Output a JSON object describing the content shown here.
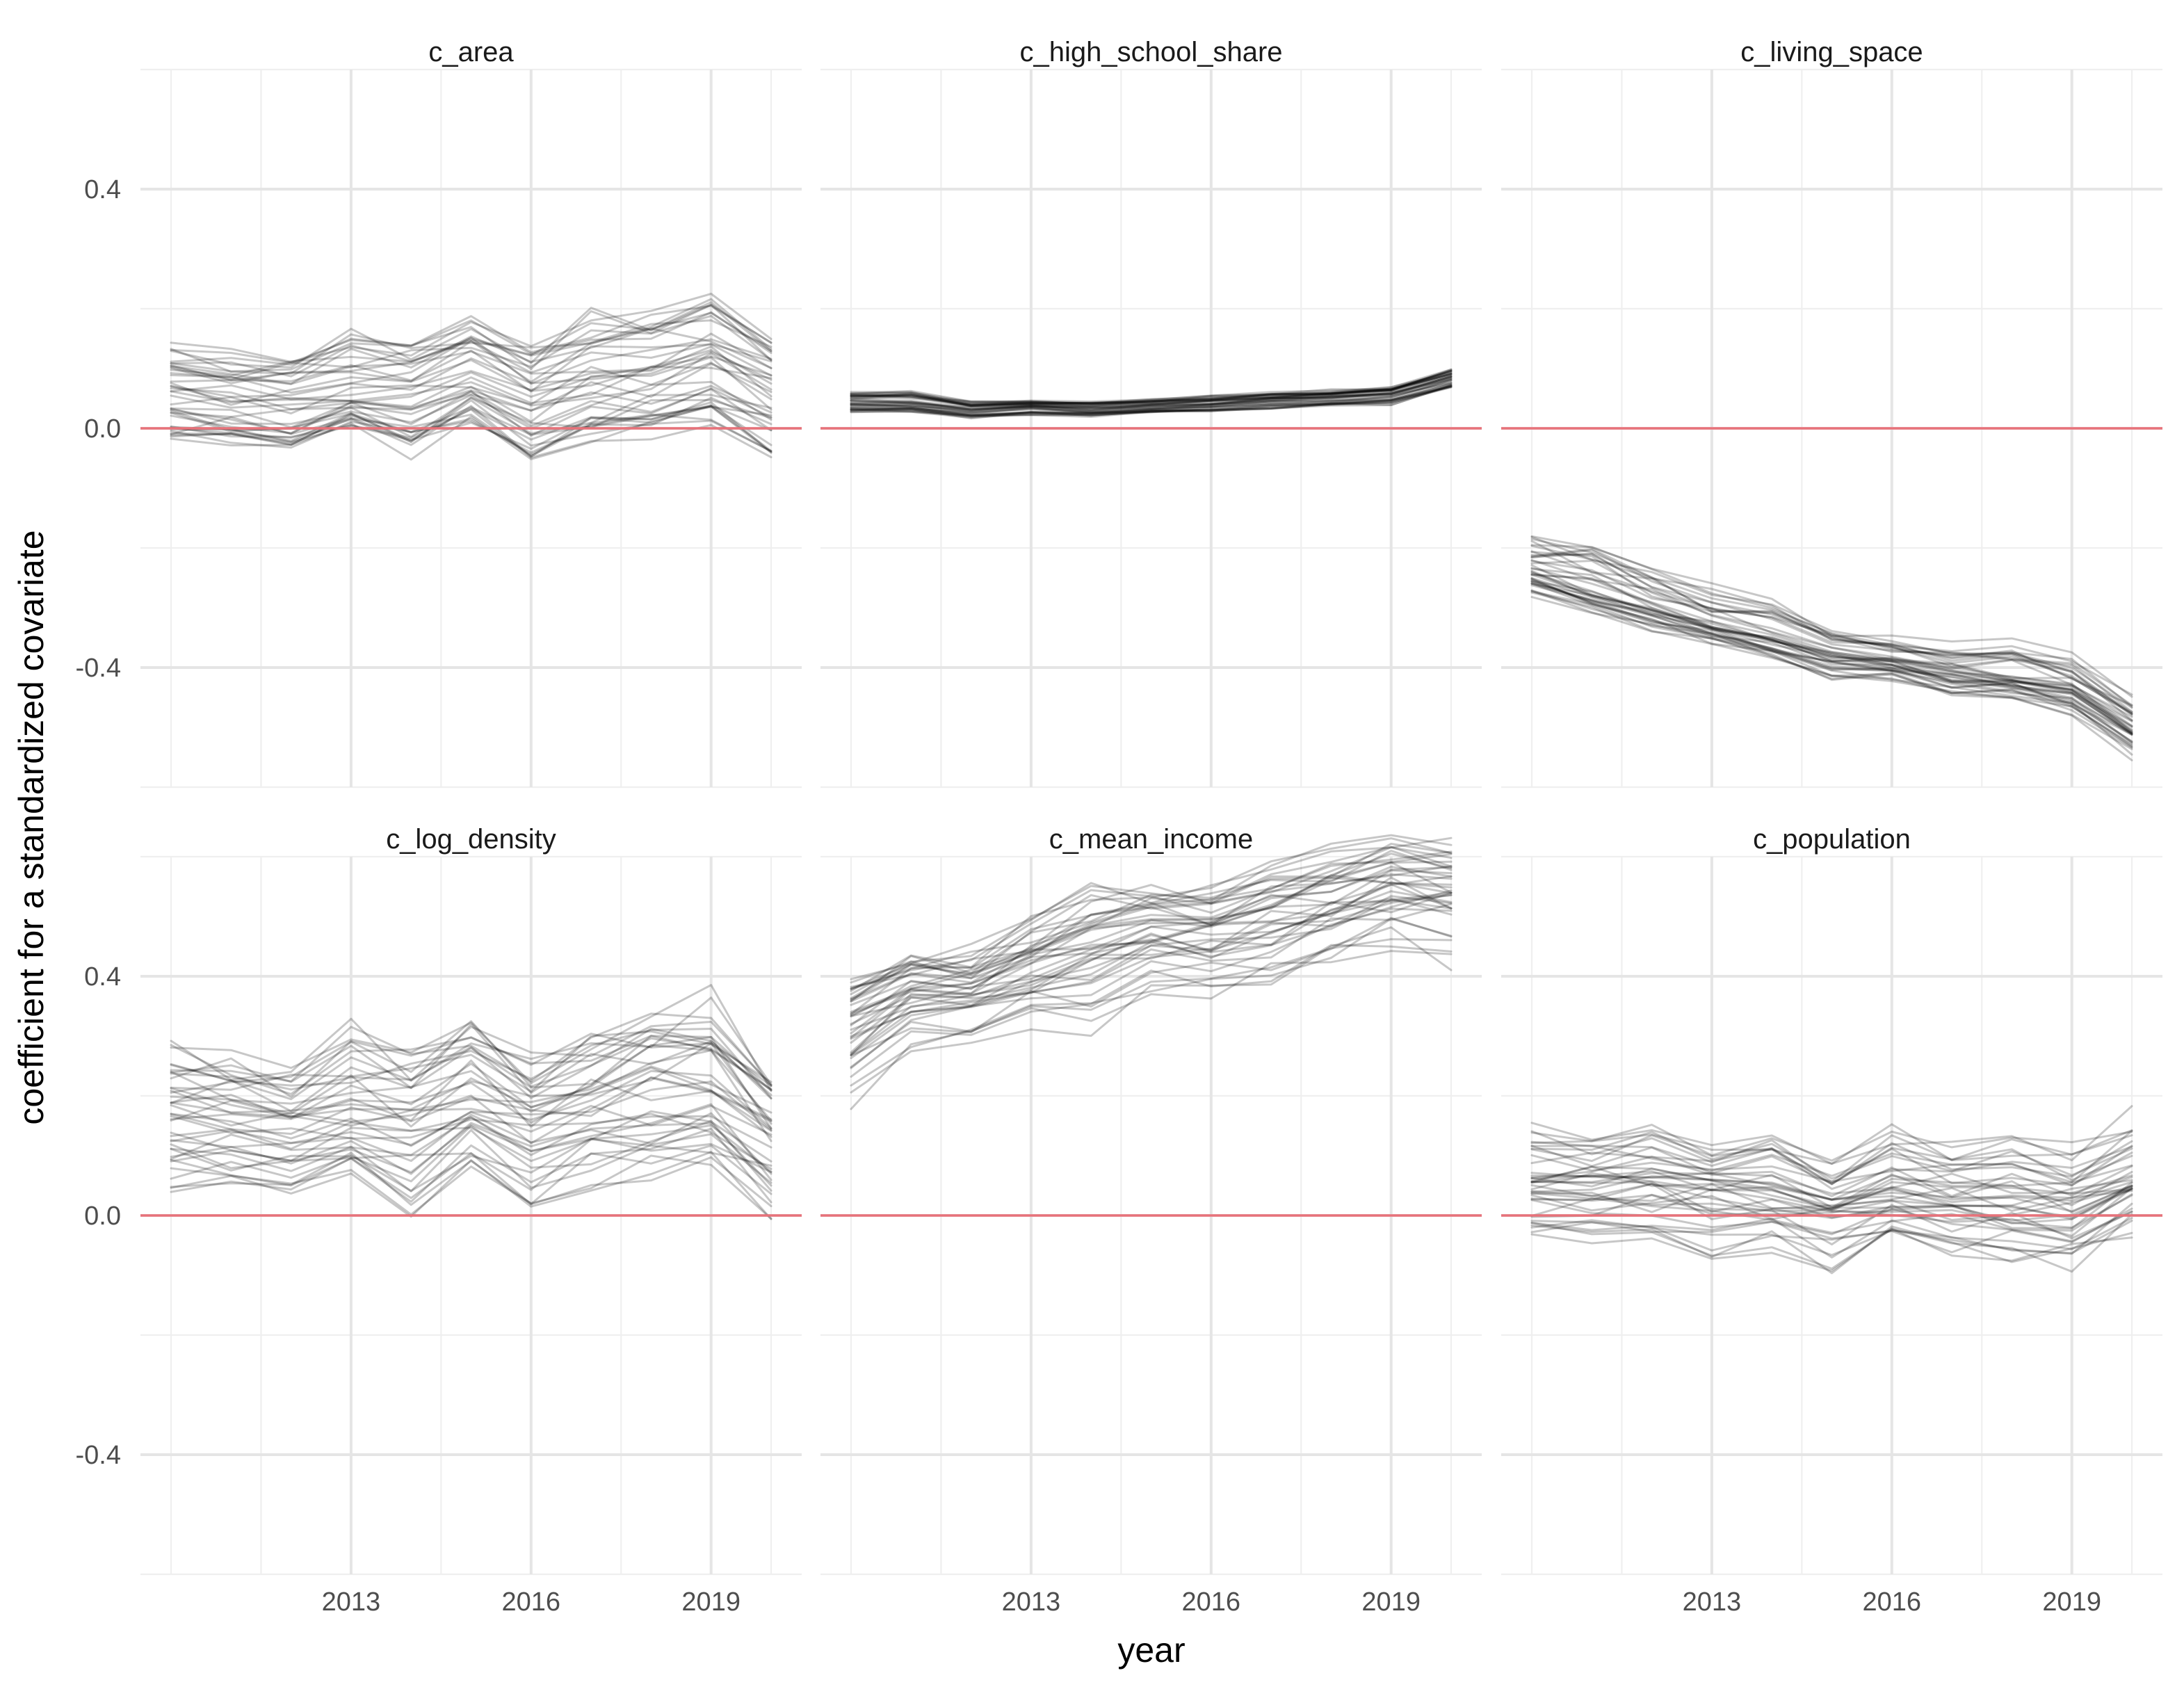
{
  "chart_data": {
    "type": "line",
    "layout": "facet-grid-2x3",
    "xlabel": "year",
    "ylabel": "coefficient for a standardized covariate",
    "x_range": [
      2010,
      2020
    ],
    "y_range": [
      -0.6,
      0.6
    ],
    "x_major_ticks": [
      2013,
      2016,
      2019
    ],
    "x_tick_labels": [
      "2013",
      "2016",
      "2019"
    ],
    "y_major_ticks": [
      -0.4,
      0.0,
      0.4
    ],
    "y_tick_labels": [
      "-0.4",
      "0.0",
      "0.4"
    ],
    "grid": true,
    "reference_line": {
      "y": 0.0,
      "color": "#e8727a"
    },
    "series_color": "#000000",
    "series_opacity": 0.22,
    "lines_per_panel": 40,
    "legend": "none",
    "panels": [
      {
        "name": "c_area",
        "years": [
          2010,
          2011,
          2012,
          2013,
          2014,
          2015,
          2016,
          2017,
          2018,
          2019,
          2020
        ],
        "mean": [
          0.05,
          0.04,
          0.03,
          0.05,
          0.05,
          0.08,
          0.04,
          0.07,
          0.08,
          0.1,
          0.06
        ],
        "min": [
          -0.07,
          -0.06,
          -0.08,
          -0.02,
          -0.09,
          -0.03,
          -0.1,
          -0.07,
          -0.06,
          -0.05,
          -0.1
        ],
        "max": [
          0.18,
          0.17,
          0.17,
          0.21,
          0.19,
          0.24,
          0.18,
          0.25,
          0.24,
          0.28,
          0.19
        ]
      },
      {
        "name": "c_high_school_share",
        "years": [
          2010,
          2011,
          2012,
          2013,
          2014,
          2015,
          2016,
          2017,
          2018,
          2019,
          2020
        ],
        "mean": [
          0.04,
          0.04,
          0.03,
          0.035,
          0.03,
          0.035,
          0.04,
          0.045,
          0.05,
          0.055,
          0.08
        ],
        "min": [
          0.02,
          0.02,
          0.01,
          0.015,
          0.015,
          0.02,
          0.02,
          0.025,
          0.03,
          0.03,
          0.06
        ],
        "max": [
          0.07,
          0.07,
          0.05,
          0.05,
          0.05,
          0.055,
          0.06,
          0.065,
          0.07,
          0.075,
          0.11
        ]
      },
      {
        "name": "c_living_space",
        "years": [
          2010,
          2011,
          2012,
          2013,
          2014,
          2015,
          2016,
          2017,
          2018,
          2019,
          2020
        ],
        "mean": [
          -0.24,
          -0.27,
          -0.3,
          -0.33,
          -0.35,
          -0.38,
          -0.39,
          -0.41,
          -0.42,
          -0.44,
          -0.5
        ],
        "min": [
          -0.31,
          -0.33,
          -0.36,
          -0.38,
          -0.41,
          -0.45,
          -0.44,
          -0.48,
          -0.47,
          -0.5,
          -0.58
        ],
        "max": [
          -0.14,
          -0.14,
          -0.19,
          -0.23,
          -0.25,
          -0.31,
          -0.33,
          -0.34,
          -0.33,
          -0.35,
          -0.42
        ]
      },
      {
        "name": "c_log_density",
        "years": [
          2010,
          2011,
          2012,
          2013,
          2014,
          2015,
          2016,
          2017,
          2018,
          2019,
          2020
        ],
        "mean": [
          0.15,
          0.14,
          0.13,
          0.15,
          0.14,
          0.18,
          0.13,
          0.17,
          0.18,
          0.2,
          0.12
        ],
        "min": [
          -0.03,
          -0.02,
          -0.03,
          0.03,
          -0.07,
          0.02,
          -0.07,
          -0.02,
          -0.03,
          0.0,
          -0.07
        ],
        "max": [
          0.35,
          0.34,
          0.31,
          0.4,
          0.34,
          0.43,
          0.33,
          0.39,
          0.42,
          0.45,
          0.31
        ]
      },
      {
        "name": "c_mean_income",
        "years": [
          2010,
          2011,
          2012,
          2013,
          2014,
          2015,
          2016,
          2017,
          2018,
          2019,
          2020
        ],
        "mean": [
          0.32,
          0.37,
          0.37,
          0.41,
          0.44,
          0.47,
          0.47,
          0.5,
          0.52,
          0.55,
          0.54
        ],
        "min": [
          0.11,
          0.23,
          0.24,
          0.28,
          0.25,
          0.32,
          0.31,
          0.32,
          0.38,
          0.4,
          0.36
        ],
        "max": [
          0.46,
          0.5,
          0.5,
          0.56,
          0.64,
          0.63,
          0.6,
          0.65,
          0.69,
          0.7,
          0.7
        ]
      },
      {
        "name": "c_population",
        "years": [
          2010,
          2011,
          2012,
          2013,
          2014,
          2015,
          2016,
          2017,
          2018,
          2019,
          2020
        ],
        "mean": [
          0.05,
          0.05,
          0.06,
          0.05,
          0.04,
          0.02,
          0.04,
          0.03,
          0.03,
          0.02,
          0.06
        ],
        "min": [
          -0.08,
          -0.09,
          -0.1,
          -0.12,
          -0.1,
          -0.14,
          -0.08,
          -0.12,
          -0.12,
          -0.13,
          -0.07
        ],
        "max": [
          0.2,
          0.18,
          0.2,
          0.15,
          0.18,
          0.12,
          0.2,
          0.17,
          0.18,
          0.17,
          0.22
        ]
      }
    ]
  }
}
